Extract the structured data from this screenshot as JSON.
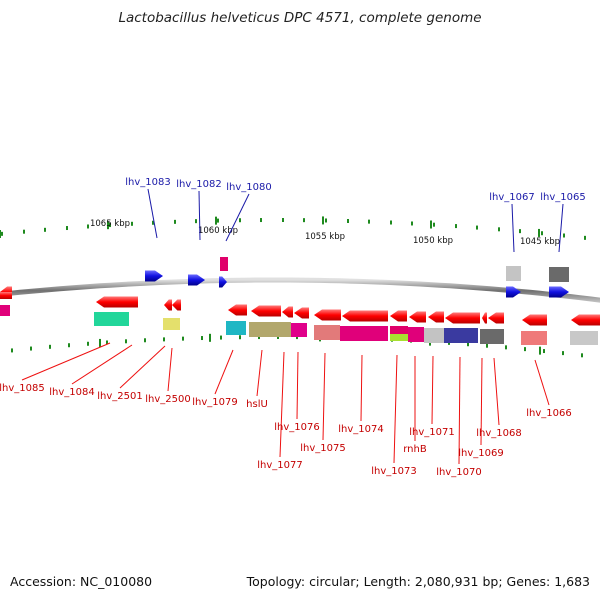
{
  "title": "Lactobacillus helveticus DPC 4571, complete genome",
  "footer": {
    "accession": "Accession: NC_010080",
    "stats": "Topology: circular; Length: 2,080,931 bp; Genes: 1,683"
  },
  "scale_labels": [
    "1065 kbp",
    "1060 kbp",
    "1055 kbp",
    "1050 kbp",
    "1045 kbp"
  ],
  "top_gene_labels": [
    "lhv_1083",
    "lhv_1082",
    "lhv_1080",
    "lhv_1067",
    "lhv_1065"
  ],
  "bottom_gene_labels": [
    "lhv_1085",
    "lhv_1084",
    "lhv_2501",
    "lhv_2500",
    "lhv_1079",
    "hslU",
    "lhv_1077",
    "lhv_1076",
    "lhv_1075",
    "lhv_1074",
    "lhv_1073",
    "rnhB",
    "lhv_1071",
    "lhv_1070",
    "lhv_1069",
    "lhv_1068",
    "lhv_1066"
  ],
  "colors": {
    "forward_strand_gene": "#1010e0",
    "reverse_strand_gene": "#e60000",
    "top_label": "#1a1aa8",
    "bottom_label": "#c40000",
    "tick": "#1e8a1e",
    "backbone": "#8c8c8c"
  }
}
